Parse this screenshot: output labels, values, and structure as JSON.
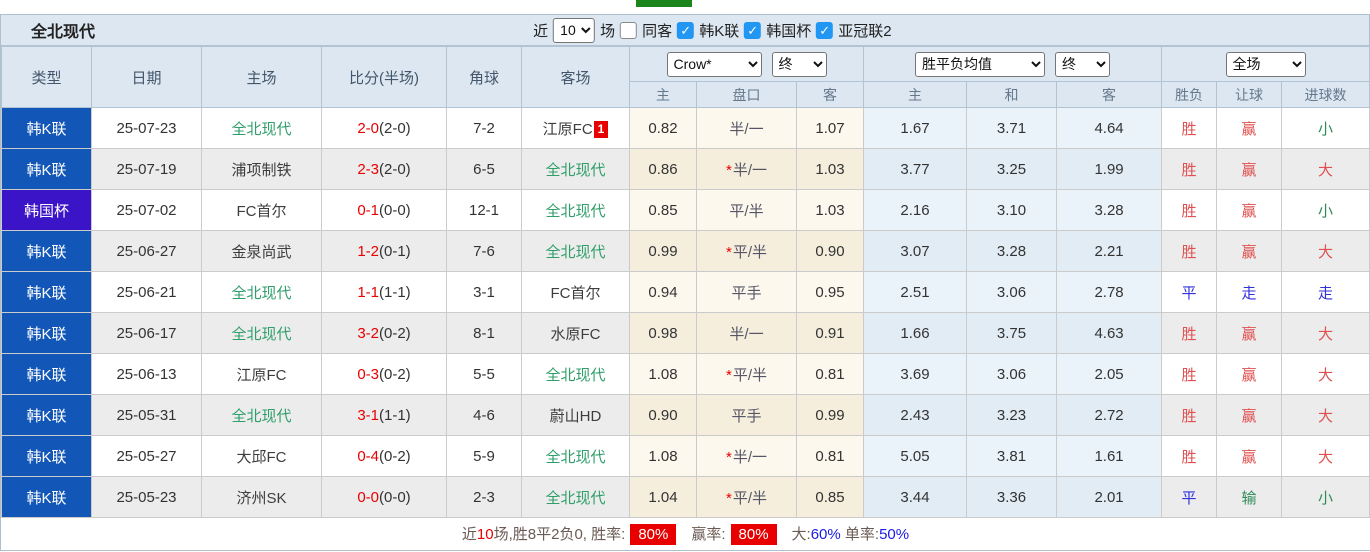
{
  "title": {
    "team": "全北现代"
  },
  "controls": {
    "recent_label": "近",
    "recent_count": "10",
    "matches_label": "场",
    "same_venue_label": "同客",
    "same_venue_checked": false,
    "league_filters": [
      {
        "label": "韩K联",
        "checked": true
      },
      {
        "label": "韩国杯",
        "checked": true
      },
      {
        "label": "亚冠联2",
        "checked": true
      }
    ]
  },
  "header": {
    "col_type": "类型",
    "col_date": "日期",
    "col_home": "主场",
    "col_score": "比分(半场)",
    "col_corner": "角球",
    "col_away": "客场",
    "asian_odds_source": "Crow*",
    "asian_odds_time": "终",
    "euro_odds_source": "胜平负均值",
    "euro_odds_time": "终",
    "result_scope": "全场",
    "sub": {
      "asian_home": "主",
      "asian_line": "盘口",
      "asian_away": "客",
      "euro_home": "主",
      "euro_draw": "和",
      "euro_away": "客",
      "result": "胜负",
      "handicap_result": "让球",
      "goals": "进球数"
    }
  },
  "rows": [
    {
      "type": "韩K联",
      "cup": false,
      "date": "25-07-23",
      "home": "全北现代",
      "home_self": true,
      "score": "2-0",
      "half": "(2-0)",
      "corners": "7-2",
      "away": "江原FC",
      "away_self": false,
      "away_badge": "1",
      "ah_home": "0.82",
      "ah_star": false,
      "ah_line": "半/一",
      "ah_away": "1.07",
      "eu_home": "1.67",
      "eu_draw": "3.71",
      "eu_away": "4.64",
      "result": "胜",
      "result_c": "red",
      "let": "赢",
      "let_c": "red",
      "goals": "小",
      "goals_c": "green"
    },
    {
      "type": "韩K联",
      "cup": false,
      "date": "25-07-19",
      "home": "浦项制铁",
      "home_self": false,
      "score": "2-3",
      "half": "(2-0)",
      "corners": "6-5",
      "away": "全北现代",
      "away_self": true,
      "away_badge": null,
      "ah_home": "0.86",
      "ah_star": true,
      "ah_line": "半/一",
      "ah_away": "1.03",
      "eu_home": "3.77",
      "eu_draw": "3.25",
      "eu_away": "1.99",
      "result": "胜",
      "result_c": "red",
      "let": "赢",
      "let_c": "red",
      "goals": "大",
      "goals_c": "red"
    },
    {
      "type": "韩国杯",
      "cup": true,
      "date": "25-07-02",
      "home": "FC首尔",
      "home_self": false,
      "score": "0-1",
      "half": "(0-0)",
      "corners": "12-1",
      "away": "全北现代",
      "away_self": true,
      "away_badge": null,
      "ah_home": "0.85",
      "ah_star": false,
      "ah_line": "平/半",
      "ah_away": "1.03",
      "eu_home": "2.16",
      "eu_draw": "3.10",
      "eu_away": "3.28",
      "result": "胜",
      "result_c": "red",
      "let": "赢",
      "let_c": "red",
      "goals": "小",
      "goals_c": "green"
    },
    {
      "type": "韩K联",
      "cup": false,
      "date": "25-06-27",
      "home": "金泉尚武",
      "home_self": false,
      "score": "1-2",
      "half": "(0-1)",
      "corners": "7-6",
      "away": "全北现代",
      "away_self": true,
      "away_badge": null,
      "ah_home": "0.99",
      "ah_star": true,
      "ah_line": "平/半",
      "ah_away": "0.90",
      "eu_home": "3.07",
      "eu_draw": "3.28",
      "eu_away": "2.21",
      "result": "胜",
      "result_c": "red",
      "let": "赢",
      "let_c": "red",
      "goals": "大",
      "goals_c": "red"
    },
    {
      "type": "韩K联",
      "cup": false,
      "date": "25-06-21",
      "home": "全北现代",
      "home_self": true,
      "score": "1-1",
      "half": "(1-1)",
      "corners": "3-1",
      "away": "FC首尔",
      "away_self": false,
      "away_badge": null,
      "ah_home": "0.94",
      "ah_star": false,
      "ah_line": "平手",
      "ah_away": "0.95",
      "eu_home": "2.51",
      "eu_draw": "3.06",
      "eu_away": "2.78",
      "result": "平",
      "result_c": "blue",
      "let": "走",
      "let_c": "blue",
      "goals": "走",
      "goals_c": "blue"
    },
    {
      "type": "韩K联",
      "cup": false,
      "date": "25-06-17",
      "home": "全北现代",
      "home_self": true,
      "score": "3-2",
      "half": "(0-2)",
      "corners": "8-1",
      "away": "水原FC",
      "away_self": false,
      "away_badge": null,
      "ah_home": "0.98",
      "ah_star": false,
      "ah_line": "半/一",
      "ah_away": "0.91",
      "eu_home": "1.66",
      "eu_draw": "3.75",
      "eu_away": "4.63",
      "result": "胜",
      "result_c": "red",
      "let": "赢",
      "let_c": "red",
      "goals": "大",
      "goals_c": "red"
    },
    {
      "type": "韩K联",
      "cup": false,
      "date": "25-06-13",
      "home": "江原FC",
      "home_self": false,
      "score": "0-3",
      "half": "(0-2)",
      "corners": "5-5",
      "away": "全北现代",
      "away_self": true,
      "away_badge": null,
      "ah_home": "1.08",
      "ah_star": true,
      "ah_line": "平/半",
      "ah_away": "0.81",
      "eu_home": "3.69",
      "eu_draw": "3.06",
      "eu_away": "2.05",
      "result": "胜",
      "result_c": "red",
      "let": "赢",
      "let_c": "red",
      "goals": "大",
      "goals_c": "red"
    },
    {
      "type": "韩K联",
      "cup": false,
      "date": "25-05-31",
      "home": "全北现代",
      "home_self": true,
      "score": "3-1",
      "half": "(1-1)",
      "corners": "4-6",
      "away": "蔚山HD",
      "away_self": false,
      "away_badge": null,
      "ah_home": "0.90",
      "ah_star": false,
      "ah_line": "平手",
      "ah_away": "0.99",
      "eu_home": "2.43",
      "eu_draw": "3.23",
      "eu_away": "2.72",
      "result": "胜",
      "result_c": "red",
      "let": "赢",
      "let_c": "red",
      "goals": "大",
      "goals_c": "red"
    },
    {
      "type": "韩K联",
      "cup": false,
      "date": "25-05-27",
      "home": "大邱FC",
      "home_self": false,
      "score": "0-4",
      "half": "(0-2)",
      "corners": "5-9",
      "away": "全北现代",
      "away_self": true,
      "away_badge": null,
      "ah_home": "1.08",
      "ah_star": true,
      "ah_line": "半/一",
      "ah_away": "0.81",
      "eu_home": "5.05",
      "eu_draw": "3.81",
      "eu_away": "1.61",
      "result": "胜",
      "result_c": "red",
      "let": "赢",
      "let_c": "red",
      "goals": "大",
      "goals_c": "red"
    },
    {
      "type": "韩K联",
      "cup": false,
      "date": "25-05-23",
      "home": "济州SK",
      "home_self": false,
      "score": "0-0",
      "half": "(0-0)",
      "corners": "2-3",
      "away": "全北现代",
      "away_self": true,
      "away_badge": null,
      "ah_home": "1.04",
      "ah_star": true,
      "ah_line": "平/半",
      "ah_away": "0.85",
      "eu_home": "3.44",
      "eu_draw": "3.36",
      "eu_away": "2.01",
      "result": "平",
      "result_c": "blue",
      "let": "输",
      "let_c": "green",
      "goals": "小",
      "goals_c": "green"
    }
  ],
  "footer": {
    "recent_prefix": "近",
    "recent_num": "10",
    "summary": "场,胜8平2负0, 胜率:",
    "win_rate": "80%",
    "cover_label": "赢率:",
    "cover_rate": "80%",
    "big_label": "大:",
    "big_rate": "60%",
    "single_label": "单率:",
    "single_rate": "50%"
  },
  "colors": {
    "league_badge_blue": "#1257b8",
    "cup_badge_purple": "#3c14c8",
    "self_team_green": "#2f9e6a",
    "score_red": "#e80000",
    "win_red": "#e05050",
    "draw_blue": "#3030dd",
    "goals_green": "#2e8b57",
    "checkbox_blue": "#2196f3",
    "header_bg": "#dce7f1",
    "asian_odds_bg": "#fdf8ed",
    "euro_odds_bg": "#eaf3fa",
    "rate_badge_red": "#e80000",
    "tab_indicator_green": "#1b841b"
  }
}
